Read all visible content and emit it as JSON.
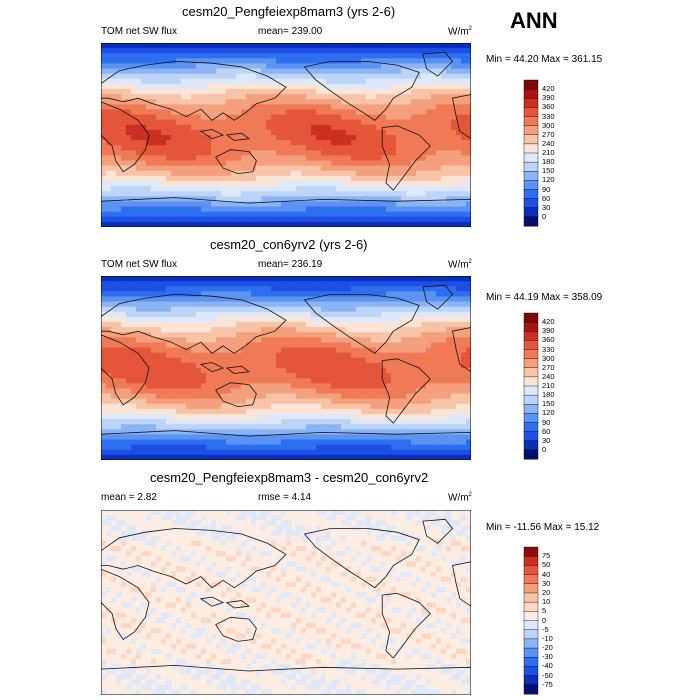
{
  "season": "ANN",
  "colors": {
    "panel12": [
      "#030f6f",
      "#0a2fb8",
      "#1e4ee6",
      "#2c6ff0",
      "#5b93f2",
      "#8cb4f5",
      "#bcd4f8",
      "#dde9fb",
      "#fbe3d5",
      "#f8c4a8",
      "#f4a07d",
      "#ef7a55",
      "#e4553a",
      "#cc2f22",
      "#a51612",
      "#7a0a0a"
    ],
    "panel3": [
      "#030f6f",
      "#0a2fb8",
      "#1e4ee6",
      "#2c6ff0",
      "#5b93f2",
      "#8cb4f5",
      "#bcd4f8",
      "#dde9fb",
      "#fdece2",
      "#fbd7c3",
      "#f8c4a8",
      "#f4a07d",
      "#ef7a55",
      "#e4553a",
      "#cc2f22",
      "#8b0d0d"
    ]
  },
  "panels": [
    {
      "title": "cesm20_Pengfeiexp8mam3 (yrs 2-6)",
      "left_label": "TOM net SW flux",
      "mid_label": "mean= 239.00",
      "units": "W/m",
      "units_sup": "2",
      "minmax": "Min = 44.20 Max = 361.15",
      "colorbar_labels": [
        "420",
        "390",
        "360",
        "330",
        "300",
        "270",
        "240",
        "210",
        "180",
        "150",
        "120",
        "90",
        "60",
        "30",
        "0"
      ]
    },
    {
      "title": "cesm20_con6yrv2 (yrs 2-6)",
      "left_label": "TOM net SW flux",
      "mid_label": "mean= 236.19",
      "units": "W/m",
      "units_sup": "2",
      "minmax": "Min = 44.19 Max = 358.09",
      "colorbar_labels": [
        "420",
        "390",
        "360",
        "330",
        "300",
        "270",
        "240",
        "210",
        "180",
        "150",
        "120",
        "90",
        "60",
        "30",
        "0"
      ]
    },
    {
      "title": "cesm20_Pengfeiexp8mam3 - cesm20_con6yrv2",
      "left_label": "mean =   2.82",
      "mid_label": "rmse =   4.14",
      "units": "W/m",
      "units_sup": "2",
      "minmax": "Min = -11.56 Max =  15.12",
      "colorbar_labels": [
        "75",
        "50",
        "40",
        "30",
        "20",
        "10",
        "5",
        "0",
        "-5",
        "-10",
        "-20",
        "-30",
        "-40",
        "-50",
        "-75"
      ]
    }
  ]
}
